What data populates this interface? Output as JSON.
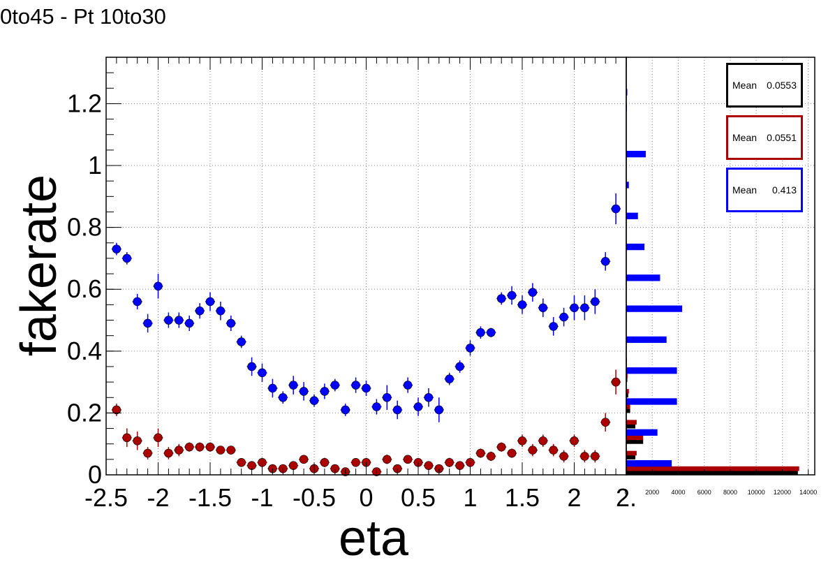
{
  "title": "0to45 - Pt 10to30",
  "chart_data": [
    {
      "type": "scatter",
      "xlabel": "eta",
      "ylabel": "fakerate",
      "xlim": [
        -2.5,
        2.5
      ],
      "ylim": [
        0,
        1.35
      ],
      "grid": true,
      "x_ticks": [
        "-2.5",
        "-2",
        "-1.5",
        "-1",
        "-0.5",
        "0",
        "0.5",
        "1",
        "1.5",
        "2",
        "2."
      ],
      "y_ticks": [
        "0",
        "0.2",
        "0.4",
        "0.6",
        "0.8",
        "1",
        "1.2"
      ],
      "x_tick_values": [
        -2.5,
        -2,
        -1.5,
        -1,
        -0.5,
        0,
        0.5,
        1,
        1.5,
        2,
        2.5
      ],
      "y_tick_values": [
        0,
        0.2,
        0.4,
        0.6,
        0.8,
        1,
        1.2
      ],
      "series": [
        {
          "color": "#0000ff",
          "x": [
            -2.4,
            -2.3,
            -2.2,
            -2.1,
            -2.0,
            -1.9,
            -1.8,
            -1.7,
            -1.6,
            -1.5,
            -1.4,
            -1.3,
            -1.2,
            -1.1,
            -1.0,
            -0.9,
            -0.8,
            -0.7,
            -0.6,
            -0.5,
            -0.4,
            -0.3,
            -0.2,
            -0.1,
            0.0,
            0.1,
            0.2,
            0.3,
            0.4,
            0.5,
            0.6,
            0.7,
            0.8,
            0.9,
            1.0,
            1.1,
            1.2,
            1.3,
            1.4,
            1.5,
            1.6,
            1.7,
            1.8,
            1.9,
            2.0,
            2.1,
            2.2,
            2.3,
            2.4
          ],
          "y": [
            0.73,
            0.7,
            0.56,
            0.49,
            0.61,
            0.5,
            0.5,
            0.49,
            0.53,
            0.56,
            0.53,
            0.49,
            0.43,
            0.35,
            0.33,
            0.28,
            0.25,
            0.29,
            0.27,
            0.24,
            0.27,
            0.29,
            0.21,
            0.29,
            0.28,
            0.22,
            0.25,
            0.21,
            0.29,
            0.22,
            0.25,
            0.21,
            0.31,
            0.35,
            0.41,
            0.46,
            0.46,
            0.57,
            0.58,
            0.55,
            0.59,
            0.54,
            0.48,
            0.51,
            0.54,
            0.54,
            0.56,
            0.69,
            0.86
          ],
          "err": [
            0.02,
            0.02,
            0.025,
            0.03,
            0.04,
            0.025,
            0.025,
            0.025,
            0.025,
            0.03,
            0.03,
            0.025,
            0.02,
            0.03,
            0.03,
            0.03,
            0.02,
            0.03,
            0.03,
            0.02,
            0.025,
            0.02,
            0.02,
            0.025,
            0.025,
            0.025,
            0.04,
            0.03,
            0.025,
            0.03,
            0.03,
            0.04,
            0.02,
            0.02,
            0.025,
            0.02,
            0.015,
            0.02,
            0.03,
            0.03,
            0.03,
            0.03,
            0.03,
            0.03,
            0.04,
            0.04,
            0.04,
            0.03,
            0.05
          ]
        },
        {
          "color": "#aa0000",
          "x": [
            -2.4,
            -2.3,
            -2.2,
            -2.1,
            -2.0,
            -1.9,
            -1.8,
            -1.7,
            -1.6,
            -1.5,
            -1.4,
            -1.3,
            -1.2,
            -1.1,
            -1.0,
            -0.9,
            -0.8,
            -0.7,
            -0.6,
            -0.5,
            -0.4,
            -0.3,
            -0.2,
            -0.1,
            0.0,
            0.1,
            0.2,
            0.3,
            0.4,
            0.5,
            0.6,
            0.7,
            0.8,
            0.9,
            1.0,
            1.1,
            1.2,
            1.3,
            1.4,
            1.5,
            1.6,
            1.7,
            1.8,
            1.9,
            2.0,
            2.1,
            2.2,
            2.3,
            2.4
          ],
          "y": [
            0.21,
            0.12,
            0.11,
            0.07,
            0.12,
            0.07,
            0.08,
            0.09,
            0.09,
            0.09,
            0.08,
            0.08,
            0.04,
            0.03,
            0.04,
            0.02,
            0.02,
            0.03,
            0.05,
            0.02,
            0.04,
            0.02,
            0.01,
            0.04,
            0.04,
            0.01,
            0.05,
            0.02,
            0.05,
            0.04,
            0.03,
            0.02,
            0.04,
            0.03,
            0.04,
            0.07,
            0.06,
            0.09,
            0.07,
            0.11,
            0.08,
            0.11,
            0.08,
            0.06,
            0.11,
            0.06,
            0.06,
            0.17,
            0.3
          ],
          "err": [
            0.02,
            0.03,
            0.03,
            0.02,
            0.03,
            0.02,
            0.02,
            0.015,
            0.015,
            0.015,
            0.01,
            0.01,
            0.01,
            0.01,
            0.015,
            0.01,
            0.01,
            0.01,
            0.01,
            0.01,
            0.015,
            0.01,
            0.01,
            0.01,
            0.01,
            0.01,
            0.015,
            0.01,
            0.01,
            0.01,
            0.01,
            0.01,
            0.015,
            0.01,
            0.015,
            0.015,
            0.015,
            0.015,
            0.015,
            0.02,
            0.02,
            0.02,
            0.02,
            0.02,
            0.02,
            0.02,
            0.02,
            0.03,
            0.04
          ]
        }
      ]
    },
    {
      "type": "bar",
      "orientation": "horizontal",
      "xlim": [
        0,
        14500
      ],
      "x_ticks": [
        "0",
        "2000",
        "4000",
        "6000",
        "8000",
        "10000",
        "12000",
        "14000"
      ],
      "x_tick_values": [
        0,
        2000,
        4000,
        6000,
        8000,
        10000,
        12000,
        14000
      ],
      "grid": true,
      "categories": [
        0.025,
        0.075,
        0.125,
        0.175,
        0.225,
        0.275,
        0.325,
        0.375,
        0.425,
        0.475,
        0.525,
        0.575,
        0.625,
        0.675,
        0.725,
        0.775,
        0.825,
        0.875,
        0.925,
        0.975,
        1.025,
        1.075,
        1.125,
        1.175,
        1.225,
        1.275,
        1.325
      ],
      "series": [
        {
          "color": "#000000",
          "stats": {
            "label": "Mean",
            "value": "0.0553"
          },
          "values": [
            13200,
            700,
            1300,
            700,
            300,
            150,
            80,
            40,
            0,
            0,
            0,
            0,
            0,
            0,
            0,
            0,
            0,
            0,
            0,
            0,
            0,
            0,
            0,
            0,
            0,
            0,
            0
          ]
        },
        {
          "color": "#aa0000",
          "stats": {
            "label": "Mean",
            "value": "0.0551"
          },
          "values": [
            13300,
            800,
            1300,
            800,
            300,
            200,
            100,
            50,
            20,
            0,
            0,
            0,
            0,
            0,
            0,
            0,
            0,
            0,
            0,
            0,
            0,
            0,
            0,
            0,
            0,
            0,
            0
          ]
        },
        {
          "color": "#0000ff",
          "stats": {
            "label": "Mean",
            "value": "0.413"
          },
          "values": [
            3500,
            0,
            2400,
            0,
            3900,
            0,
            3900,
            0,
            3100,
            0,
            4300,
            0,
            2600,
            0,
            1400,
            0,
            900,
            0,
            200,
            0,
            1500,
            0,
            0,
            50,
            80,
            0,
            30
          ]
        }
      ]
    }
  ]
}
